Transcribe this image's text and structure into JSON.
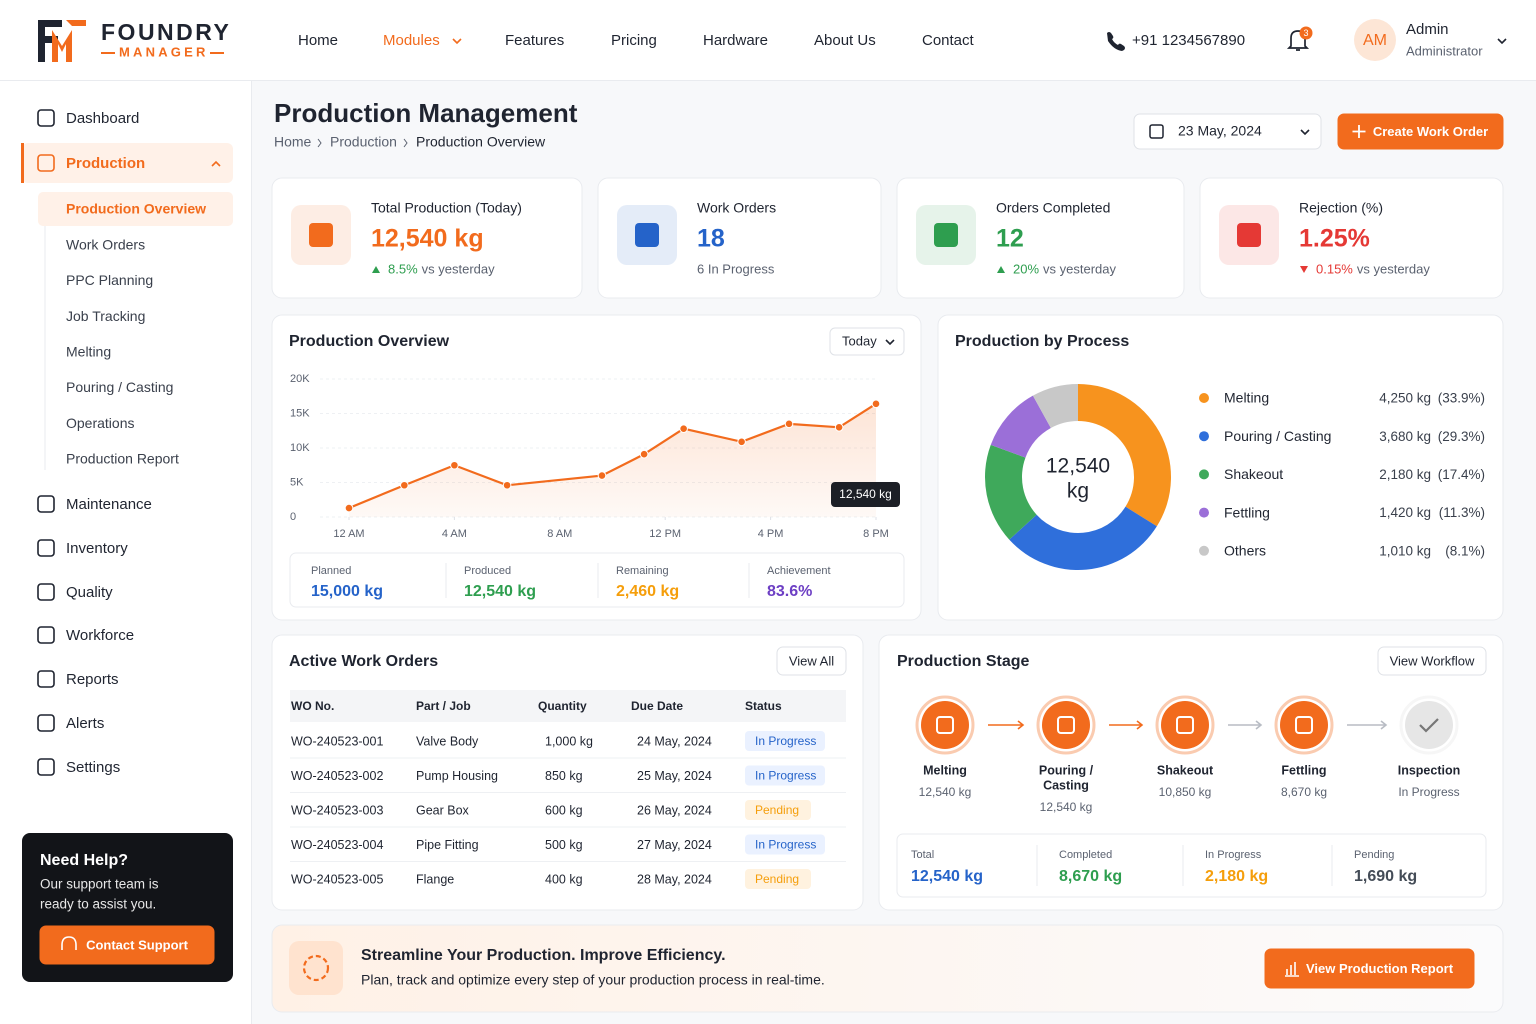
{
  "header": {
    "brand": "FOUNDRY",
    "brand_sub": "MANAGER",
    "nav": [
      "Home",
      "Modules",
      "Features",
      "Pricing",
      "Hardware",
      "About Us",
      "Contact"
    ],
    "nav_active": 1,
    "phone": "+91 1234567890",
    "notifications": 3,
    "user": {
      "initials": "AM",
      "name": "Admin",
      "role": "Administrator"
    }
  },
  "sidebar": {
    "items": [
      "Dashboard",
      "Production",
      "Maintenance",
      "Inventory",
      "Quality",
      "Workforce",
      "Reports",
      "Alerts",
      "Settings"
    ],
    "active": 1,
    "sub_items": [
      "Production Overview",
      "Work Orders",
      "PPC Planning",
      "Job Tracking",
      "Melting",
      "Pouring / Casting",
      "Operations",
      "Production Report"
    ],
    "sub_active": 0,
    "help": {
      "title": "Need Help?",
      "text": [
        "Our support team is",
        "ready to assist you."
      ],
      "button": "Contact Support"
    }
  },
  "page": {
    "title": "Production Management",
    "breadcrumb": [
      "Home",
      "Production",
      "Production Overview"
    ],
    "date": "23 May, 2024",
    "button": "Create Work Order"
  },
  "kpis": [
    {
      "label": "Total Production (Today)",
      "value": "12,540 kg",
      "change": "8.5%",
      "note": "vs yesterday",
      "trend": "up",
      "color": "#f26b1d",
      "change_color": "#2e9e4f"
    },
    {
      "label": "Work Orders",
      "value": "18",
      "note": "6 In Progress",
      "color": "#2563c9"
    },
    {
      "label": "Orders Completed",
      "value": "12",
      "change": "20%",
      "note": "vs yesterday",
      "trend": "up",
      "color": "#2e9e4f",
      "change_color": "#2e9e4f"
    },
    {
      "label": "Rejection (%)",
      "value": "1.25%",
      "change": "0.15%",
      "note": "vs yesterday",
      "trend": "down",
      "color": "#e53935",
      "change_color": "#e53935"
    }
  ],
  "overview": {
    "filter": "Today",
    "stats": [
      {
        "label": "Planned",
        "value": "15,000 kg",
        "color": "#2563c9"
      },
      {
        "label": "Produced",
        "value": "12,540 kg",
        "color": "#2e9e4f"
      },
      {
        "label": "Remaining",
        "value": "2,460 kg",
        "color": "#f59e0b"
      },
      {
        "label": "Achievement",
        "value": "83.6%",
        "color": "#6d3fc4"
      }
    ]
  },
  "chart_data": [
    {
      "type": "line",
      "title": "Production Overview",
      "x": [
        0,
        2.1,
        4,
        6,
        9.6,
        11.2,
        12.7,
        14.9,
        16.7,
        18.6,
        20
      ],
      "values": [
        1300,
        4600,
        7500,
        4600,
        6000,
        9100,
        12800,
        10900,
        13500,
        13000,
        16400
      ],
      "xlim": [
        0,
        20
      ],
      "xticks": [
        {
          "value": 0,
          "label": "12 AM"
        },
        {
          "value": 4,
          "label": "4 AM"
        },
        {
          "value": 8,
          "label": "8 AM"
        },
        {
          "value": 12,
          "label": "12 PM"
        },
        {
          "value": 16,
          "label": "4 PM"
        },
        {
          "value": 20,
          "label": "8 PM"
        }
      ],
      "ylim": [
        0,
        20000
      ],
      "yticks": [
        0,
        {
          "value": 5000,
          "label": "5K"
        },
        {
          "value": 10000,
          "label": "10K"
        },
        {
          "value": 15000,
          "label": "15K"
        },
        {
          "value": 20000,
          "label": "20K"
        }
      ],
      "color": "#f26b1d",
      "grid": true,
      "annotation": "12,540 kg"
    },
    {
      "type": "pie",
      "title": "Production by Process",
      "categories": [
        "Melting",
        "Pouring / Casting",
        "Shakeout",
        "Fettling",
        "Others"
      ],
      "values": [
        4250,
        3680,
        2180,
        1420,
        1010
      ],
      "value_labels": [
        "4,250 kg",
        "3,680 kg",
        "2,180 kg",
        "1,420 kg",
        "1,010 kg"
      ],
      "percent_labels": [
        "(33.9%)",
        "(29.3%)",
        "(17.4%)",
        "(11.3%)",
        "(8.1%)"
      ],
      "colors": [
        "#f7931e",
        "#2f6fdb",
        "#3fa95b",
        "#9b6fd8",
        "#c8c8c8"
      ],
      "center_value": "12,540",
      "center_unit": "kg"
    }
  ],
  "work_orders": {
    "title": "Active Work Orders",
    "button": "View All",
    "columns": [
      "WO No.",
      "Part / Job",
      "Quantity",
      "Due Date",
      "Status"
    ],
    "rows": [
      [
        "WO-240523-001",
        "Valve Body",
        "1,000 kg",
        "24 May, 2024",
        "In Progress"
      ],
      [
        "WO-240523-002",
        "Pump Housing",
        "850 kg",
        "25 May, 2024",
        "In Progress"
      ],
      [
        "WO-240523-003",
        "Gear Box",
        "600 kg",
        "26 May, 2024",
        "Pending"
      ],
      [
        "WO-240523-004",
        "Pipe Fitting",
        "500 kg",
        "27 May, 2024",
        "In Progress"
      ],
      [
        "WO-240523-005",
        "Flange",
        "400 kg",
        "28 May, 2024",
        "Pending"
      ]
    ]
  },
  "stage": {
    "title": "Production Stage",
    "button": "View Workflow",
    "steps": [
      {
        "name": [
          "Melting"
        ],
        "value": "12,540 kg",
        "color": "#f26b1d"
      },
      {
        "name": [
          "Pouring /",
          "Casting"
        ],
        "value": "12,540 kg",
        "color": "#f26b1d"
      },
      {
        "name": [
          "Shakeout"
        ],
        "value": "10,850 kg",
        "color": "#f26b1d"
      },
      {
        "name": [
          "Fettling"
        ],
        "value": "8,670 kg",
        "color": "#f26b1d"
      },
      {
        "name": [
          "Inspection"
        ],
        "value": "In Progress",
        "color": "#e6e6e6"
      }
    ],
    "totals": [
      {
        "label": "Total",
        "value": "12,540 kg",
        "color": "#2563c9"
      },
      {
        "label": "Completed",
        "value": "8,670 kg",
        "color": "#2e9e4f"
      },
      {
        "label": "In Progress",
        "value": "2,180 kg",
        "color": "#f59e0b"
      },
      {
        "label": "Pending",
        "value": "1,690 kg",
        "color": "#444c57"
      }
    ]
  },
  "banner": {
    "title": "Streamline Your Production. Improve Efficiency.",
    "text": "Plan, track and optimize every step of your production process in real-time.",
    "button": "View Production Report"
  }
}
